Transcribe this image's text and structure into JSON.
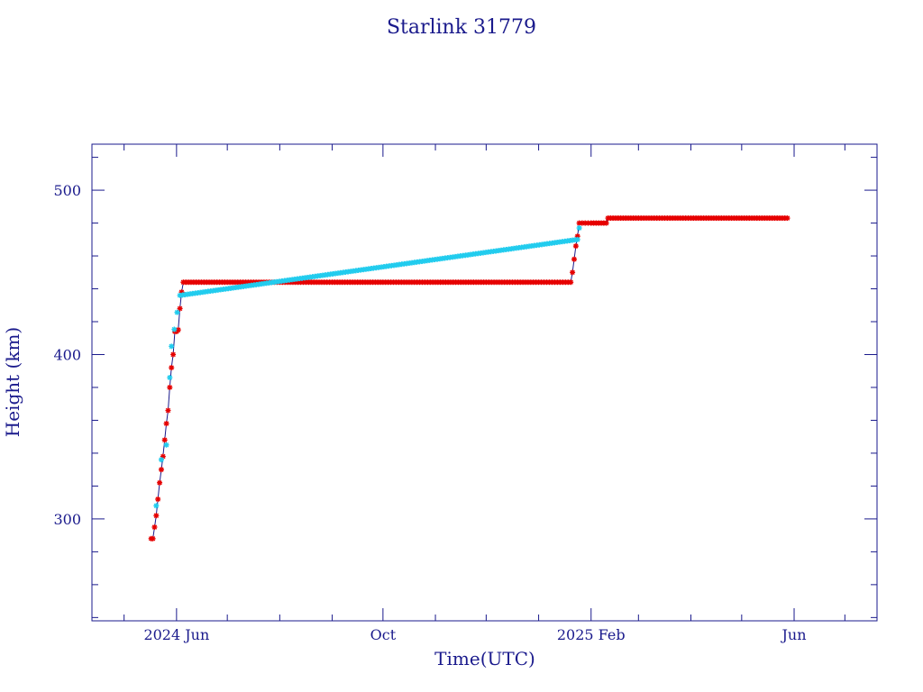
{
  "chart_data": {
    "type": "scatter",
    "title": "Starlink 31779",
    "xlabel": "Time(UTC)",
    "ylabel": "Height (km)",
    "x_scale": "time",
    "xlim": [
      "2024-04-12",
      "2025-07-20"
    ],
    "ylim": [
      238,
      528
    ],
    "yticks": [
      300,
      400,
      500
    ],
    "y_minor_step": 20,
    "xticks": [
      {
        "date": "2024-06-01",
        "label": "2024 Jun"
      },
      {
        "date": "2024-10-01",
        "label": "Oct"
      },
      {
        "date": "2025-02-01",
        "label": "2025 Feb"
      },
      {
        "date": "2025-06-01",
        "label": "Jun"
      }
    ],
    "x_minor": [
      "2024-05-01",
      "2024-07-01",
      "2024-08-01",
      "2024-09-01",
      "2024-11-01",
      "2024-12-01",
      "2025-01-01",
      "2025-03-01",
      "2025-04-01",
      "2025-05-01",
      "2025-07-01"
    ],
    "grid": false,
    "legend": "none",
    "colors": {
      "frame": "#1a1a8c",
      "line": "#1a1a8c",
      "primary": "#e60000",
      "secondary": "#22ccee"
    },
    "series": [
      {
        "marker": "star",
        "color": "#e60000",
        "points": [
          [
            "2024-05-17",
            288
          ],
          [
            "2024-05-18",
            288
          ],
          [
            "2024-05-19",
            295
          ],
          [
            "2024-05-20",
            302
          ],
          [
            "2024-05-21",
            312
          ],
          [
            "2024-05-22",
            322
          ],
          [
            "2024-05-23",
            330
          ],
          [
            "2024-05-24",
            338
          ],
          [
            "2024-05-25",
            348
          ],
          [
            "2024-05-26",
            358
          ],
          [
            "2024-05-27",
            366
          ],
          [
            "2024-05-28",
            380
          ],
          [
            "2024-05-29",
            392
          ],
          [
            "2024-05-30",
            400
          ],
          [
            "2024-05-31",
            414
          ],
          [
            "2024-06-01",
            414
          ],
          [
            "2024-06-02",
            415
          ],
          [
            "2024-06-03",
            428
          ],
          [
            "2024-06-04",
            438
          ],
          [
            "2024-06-05",
            444
          ],
          [
            "2024-07-01",
            444
          ],
          [
            "2024-08-01",
            444
          ],
          [
            "2024-09-01",
            444
          ],
          [
            "2024-10-01",
            444
          ],
          [
            "2024-11-01",
            444
          ],
          [
            "2024-12-01",
            444
          ],
          [
            "2025-01-01",
            444
          ],
          [
            "2025-01-20",
            444
          ],
          [
            "2025-01-21",
            450
          ],
          [
            "2025-01-22",
            458
          ],
          [
            "2025-01-23",
            466
          ],
          [
            "2025-01-24",
            472
          ],
          [
            "2025-01-25",
            480
          ],
          [
            "2025-02-01",
            480
          ],
          [
            "2025-02-10",
            480
          ],
          [
            "2025-02-11",
            483
          ],
          [
            "2025-03-01",
            483
          ],
          [
            "2025-04-01",
            483
          ],
          [
            "2025-05-01",
            483
          ],
          [
            "2025-05-28",
            483
          ]
        ]
      },
      {
        "marker": "star",
        "color": "#22ccee",
        "points": [
          [
            "2024-05-20",
            308
          ],
          [
            "2024-05-23",
            336
          ],
          [
            "2024-05-26",
            345
          ],
          [
            "2024-05-28",
            386
          ],
          [
            "2024-05-29",
            405
          ],
          [
            "2024-06-03",
            436
          ],
          [
            "2025-01-24",
            470
          ],
          [
            "2025-01-25",
            477
          ]
        ]
      }
    ]
  }
}
